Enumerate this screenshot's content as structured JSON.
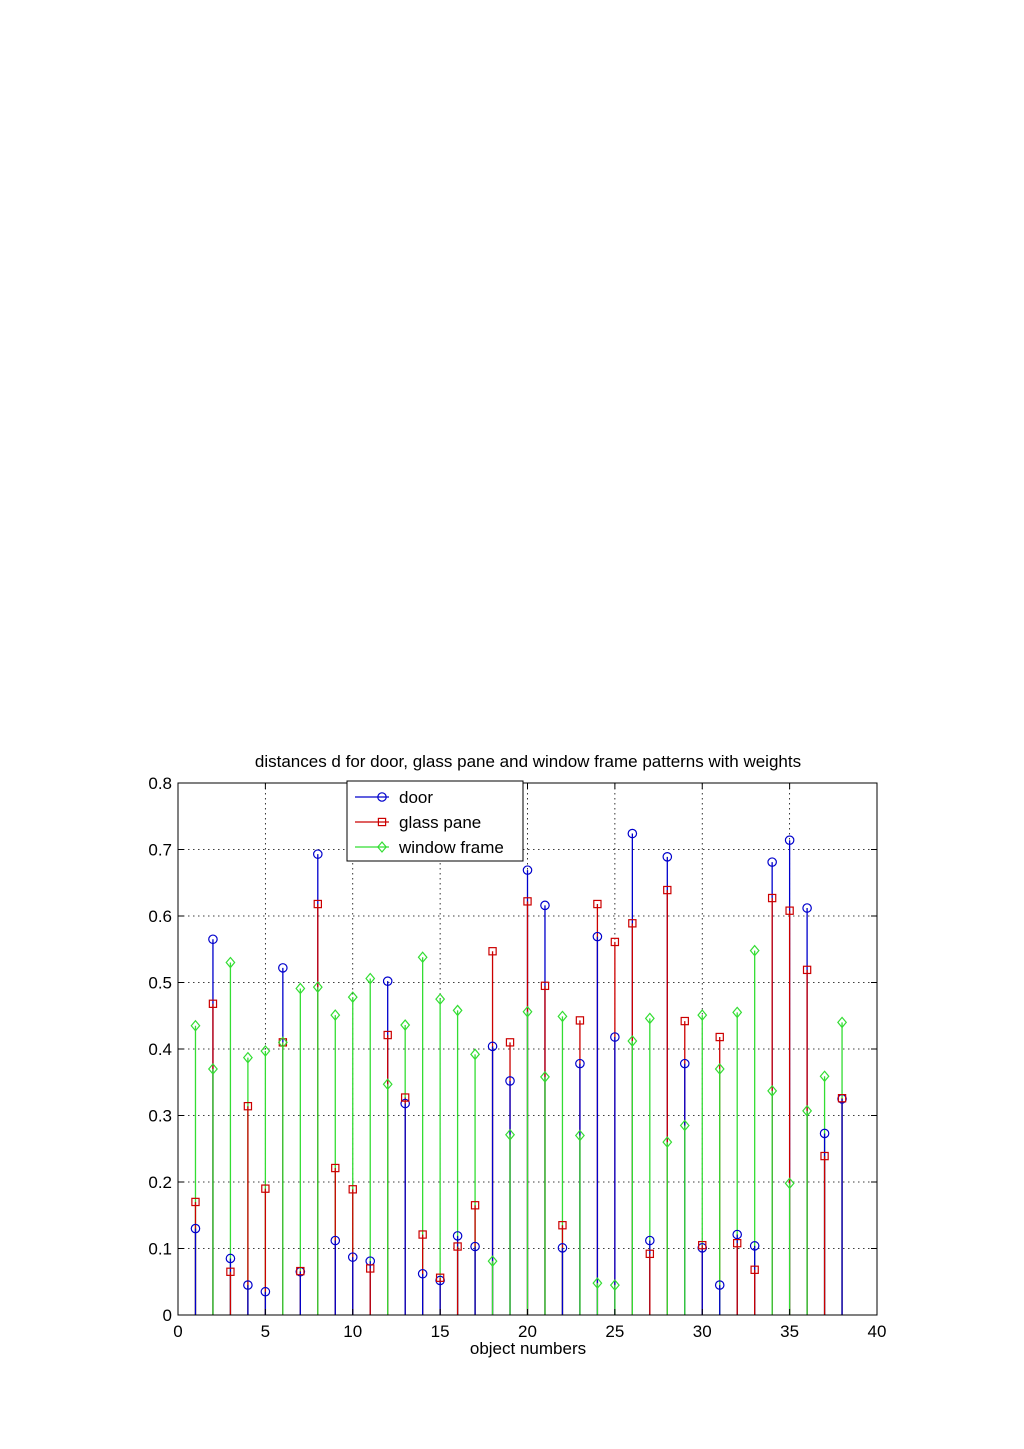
{
  "chart_data": {
    "type": "stem",
    "title": "distances d for  door, glass pane and window frame patterns with weights",
    "xlabel": "object numbers",
    "ylabel": "",
    "xlim": [
      0,
      40
    ],
    "ylim": [
      0,
      0.8
    ],
    "xticks": [
      "0",
      "5",
      "10",
      "15",
      "20",
      "25",
      "30",
      "35",
      "40"
    ],
    "yticks": [
      "0",
      "0.1",
      "0.2",
      "0.3",
      "0.4",
      "0.5",
      "0.6",
      "0.7",
      "0.8"
    ],
    "grid": true,
    "legend_position": "upper-left-center",
    "x": [
      1,
      2,
      3,
      4,
      5,
      6,
      7,
      8,
      9,
      10,
      11,
      12,
      13,
      14,
      15,
      16,
      17,
      18,
      19,
      20,
      21,
      22,
      23,
      24,
      25,
      26,
      27,
      28,
      29,
      30,
      31,
      32,
      33,
      34,
      35,
      36,
      37,
      38
    ],
    "series": [
      {
        "name": "door",
        "color": "#0000cc",
        "marker": "circle",
        "values": [
          0.13,
          0.565,
          0.085,
          0.045,
          0.035,
          0.522,
          0.065,
          0.693,
          0.112,
          0.087,
          0.081,
          0.502,
          0.318,
          0.062,
          0.052,
          0.119,
          0.103,
          0.404,
          0.352,
          0.669,
          0.616,
          0.101,
          0.378,
          0.569,
          0.418,
          0.724,
          0.112,
          0.689,
          0.378,
          0.101,
          0.045,
          0.121,
          0.104,
          0.681,
          0.714,
          0.612,
          0.273,
          0.325
        ]
      },
      {
        "name": "glass pane",
        "color": "#cc0000",
        "marker": "square",
        "values": [
          0.17,
          0.468,
          0.065,
          0.314,
          0.19,
          0.41,
          0.066,
          0.618,
          0.221,
          0.189,
          0.07,
          0.421,
          0.327,
          0.121,
          0.056,
          0.103,
          0.165,
          0.547,
          0.41,
          0.622,
          0.495,
          0.135,
          0.443,
          0.618,
          0.561,
          0.589,
          0.092,
          0.639,
          0.442,
          0.105,
          0.418,
          0.108,
          0.068,
          0.627,
          0.608,
          0.519,
          0.239,
          0.326
        ]
      },
      {
        "name": "window frame",
        "color": "#33dd33",
        "marker": "diamond",
        "values": [
          0.435,
          0.37,
          0.53,
          0.387,
          0.397,
          0.41,
          0.491,
          0.493,
          0.451,
          0.478,
          0.506,
          0.347,
          0.436,
          0.538,
          0.475,
          0.458,
          0.392,
          0.081,
          0.271,
          0.456,
          0.358,
          0.449,
          0.27,
          0.048,
          0.045,
          0.412,
          0.446,
          0.26,
          0.285,
          0.451,
          0.37,
          0.455,
          0.548,
          0.337,
          0.198,
          0.307,
          0.359,
          0.44
        ]
      }
    ]
  }
}
